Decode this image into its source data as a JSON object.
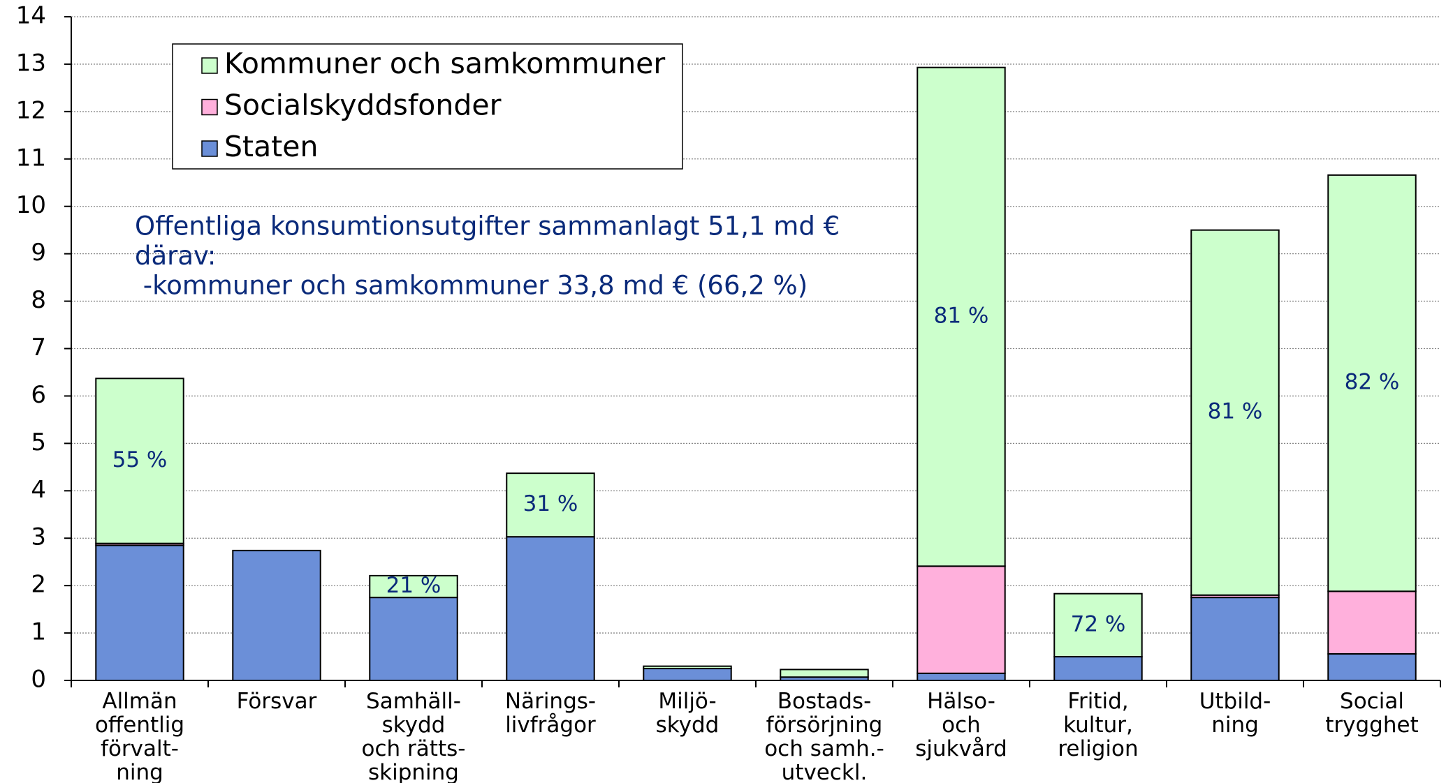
{
  "chart_data": {
    "type": "stacked_bar",
    "categories": [
      "Allmän\noffentlig\nförvalt-\nning",
      "Försvar",
      "Samhäll-\nskydd\noch rätts-\nskipning",
      "Närings-\nlivfrågor",
      "Miljö-\nskydd",
      "Bostads-\nförsörjning\noch samh.-\nutveckl.",
      "Hälso-\noch\nsjukvård",
      "Fritid,\nkultur,\nreligion",
      "Utbild-\nning",
      "Social\ntrygghet"
    ],
    "series": [
      {
        "name": "Staten",
        "color": "#6b8fd8",
        "values": [
          2.85,
          2.74,
          1.75,
          3.03,
          0.25,
          0.07,
          0.15,
          0.5,
          1.75,
          0.56
        ]
      },
      {
        "name": "Socialskyddsfonder",
        "color": "#ffb0dc",
        "values": [
          0.04,
          0,
          0,
          0,
          0,
          0,
          2.26,
          0,
          0.05,
          1.32
        ]
      },
      {
        "name": "Kommuner och samkommuner",
        "color": "#ccffcc",
        "values": [
          3.48,
          0,
          0.46,
          1.34,
          0.05,
          0.16,
          10.52,
          1.33,
          7.7,
          8.78
        ]
      }
    ],
    "share_labels": [
      "55 %",
      null,
      "21 %",
      "31 %",
      null,
      null,
      "81 %",
      "72 %",
      "81 %",
      "82 %"
    ],
    "annotation": [
      "Offentliga konsumtionsutgifter sammanlagt 51,1 md €",
      "därav:",
      " -kommuner och samkommuner 33,8 md € (66,2 %)"
    ],
    "ylim": [
      0,
      14
    ],
    "yticks": [
      0,
      1,
      2,
      3,
      4,
      5,
      6,
      7,
      8,
      9,
      10,
      11,
      12,
      13,
      14
    ],
    "grid": true,
    "legend": "upper left"
  }
}
